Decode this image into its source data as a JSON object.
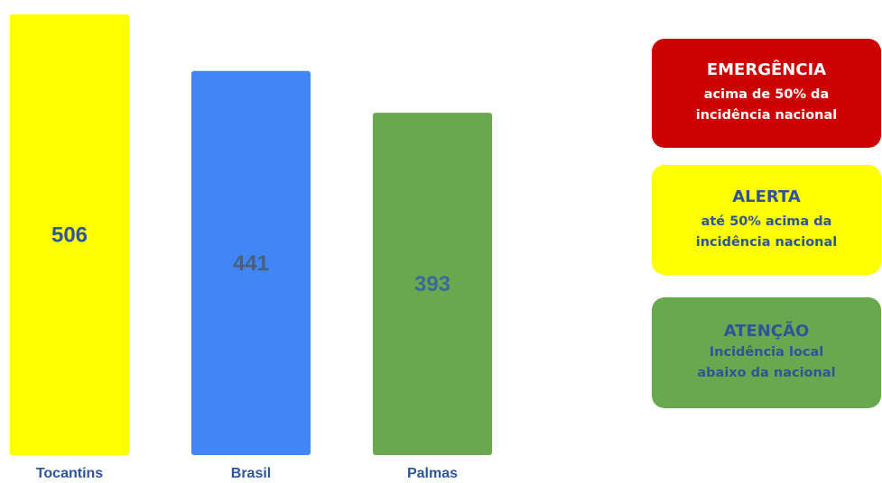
{
  "chart_data": {
    "type": "bar",
    "categories": [
      "Tocantins",
      "Brasil",
      "Palmas"
    ],
    "values": [
      506,
      441,
      393
    ],
    "colors": [
      "#ffff00",
      "#4285f4",
      "#6aa84f"
    ],
    "value_label_colors": [
      "#2f5597",
      "#4a5f7a",
      "#3a6a9a"
    ],
    "ylim": [
      0,
      510
    ],
    "grid": false,
    "legend": "right"
  },
  "legend": [
    {
      "title": "EMERGÊNCIA",
      "lines": [
        "acima de 50% da",
        "incidência nacional"
      ],
      "color": "#cc0000"
    },
    {
      "title": "ALERTA",
      "lines": [
        "até 50% acima da",
        "incidência nacional"
      ],
      "color": "#ffff00"
    },
    {
      "title": "ATENÇÃO",
      "lines": [
        "Incidência local",
        "abaixo da nacional"
      ],
      "color": "#6aa84f"
    }
  ]
}
